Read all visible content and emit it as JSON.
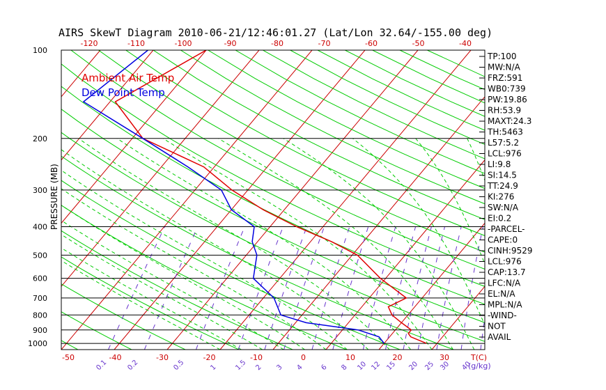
{
  "title": "AIRS SkewT Diagram 2010-06-21/12:46:01.27 (Lat/Lon 32.64/-155.00 deg)",
  "legend": {
    "ambient": "Ambient Air Temp",
    "dewpoint": "Dew Point Temp"
  },
  "colors": {
    "ambient": "#e00000",
    "dewpoint": "#0000e0",
    "isotherm": "#cc0000",
    "dry_adiabat": "#00cc00",
    "moist_adiabat": "#00cc00",
    "mixing_ratio": "#6633cc",
    "axis": "#000000"
  },
  "side_panel": [
    "TP:100",
    "MW:N/A",
    "FRZ:591",
    "WB0:739",
    "PW:19.86",
    "RH:53.9",
    "MAXT:24.3",
    "TH:5463",
    "L57:5.2",
    "LCL:976",
    "LI:9.8",
    "SI:14.5",
    "TT:24.9",
    "KI:276",
    "SW:N/A",
    "EI:0.2",
    "-PARCEL-",
    "CAPE:0",
    "CINH:9529",
    "LCL:976",
    "CAP:13.7",
    "LFC:N/A",
    "EL:N/A",
    "MPL:N/A",
    "-WIND-",
    "NOT",
    "AVAIL"
  ],
  "chart_data": {
    "type": "line",
    "title": "AIRS SkewT Diagram 2010-06-21/12:46:01.27 (Lat/Lon 32.64/-155.00 deg)",
    "ylabel": "PRESSURE (MB)",
    "pressure_ticks": [
      100,
      200,
      300,
      400,
      500,
      600,
      700,
      800,
      900,
      1000
    ],
    "top_temp_ticks": [
      -120,
      -110,
      -100,
      -90,
      -80,
      -70,
      -60,
      -50,
      -40
    ],
    "bottom_temp_ticks": [
      -50,
      -40,
      -30,
      -20,
      -10,
      0,
      10,
      20,
      30
    ],
    "bottom_unit": "T(C)",
    "mixing_ratio_labels": [
      "0.1",
      "0.2",
      "0.5",
      "1",
      "1.5",
      "2",
      "3",
      "4",
      "6",
      "8",
      "10",
      "12",
      "15",
      "20",
      "25",
      "30",
      "40"
    ],
    "mixing_unit": "(g/kg)",
    "xlim": [
      -50,
      30
    ],
    "ylim": [
      1050,
      100
    ],
    "series": [
      {
        "name": "Ambient Air Temp",
        "points": [
          [
            100,
            -70
          ],
          [
            150,
            -79
          ],
          [
            200,
            -68
          ],
          [
            250,
            -52
          ],
          [
            300,
            -43
          ],
          [
            350,
            -34
          ],
          [
            400,
            -25
          ],
          [
            450,
            -16
          ],
          [
            500,
            -9
          ],
          [
            600,
            -1
          ],
          [
            700,
            7
          ],
          [
            750,
            5
          ],
          [
            800,
            7
          ],
          [
            850,
            10
          ],
          [
            900,
            13
          ],
          [
            925,
            13
          ],
          [
            950,
            14
          ],
          [
            1000,
            18
          ]
        ]
      },
      {
        "name": "Dew Point Temp",
        "points": [
          [
            100,
            -81
          ],
          [
            150,
            -85
          ],
          [
            200,
            -68
          ],
          [
            250,
            -55
          ],
          [
            300,
            -45
          ],
          [
            350,
            -40
          ],
          [
            400,
            -33
          ],
          [
            450,
            -31
          ],
          [
            500,
            -28
          ],
          [
            600,
            -25
          ],
          [
            700,
            -18
          ],
          [
            800,
            -14
          ],
          [
            850,
            -8
          ],
          [
            900,
            3
          ],
          [
            950,
            8
          ],
          [
            1000,
            10
          ]
        ]
      }
    ]
  }
}
